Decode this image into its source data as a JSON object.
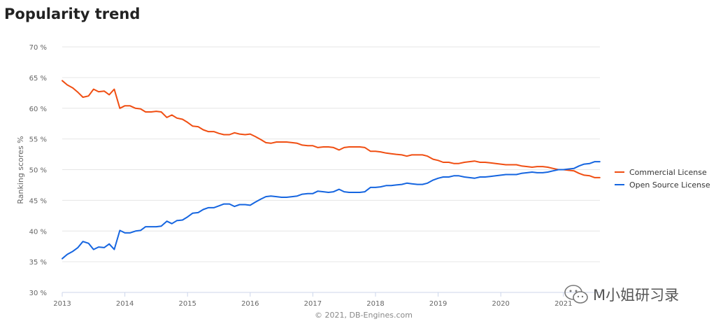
{
  "page": {
    "title": "Popularity trend"
  },
  "chart_data": {
    "type": "line",
    "ylabel": "Ranking scores %",
    "ylim": [
      30,
      70
    ],
    "yticks": [
      "30 %",
      "35 %",
      "40 %",
      "45 %",
      "50 %",
      "55 %",
      "60 %",
      "65 %",
      "70 %"
    ],
    "xlim": [
      2013.0,
      2021.61
    ],
    "xticks": [
      "2013",
      "2014",
      "2015",
      "2016",
      "2017",
      "2018",
      "2019",
      "2020",
      "2021"
    ],
    "grid": true,
    "legend_position": "right",
    "series": [
      {
        "name": "Commercial License",
        "color": "#f04e12",
        "x": [
          2013.0,
          2013.08,
          2013.17,
          2013.25,
          2013.33,
          2013.42,
          2013.5,
          2013.58,
          2013.67,
          2013.75,
          2013.83,
          2013.92,
          2014.0,
          2014.08,
          2014.17,
          2014.25,
          2014.33,
          2014.42,
          2014.5,
          2014.58,
          2014.67,
          2014.75,
          2014.83,
          2014.92,
          2015.0,
          2015.08,
          2015.17,
          2015.25,
          2015.33,
          2015.42,
          2015.5,
          2015.58,
          2015.67,
          2015.75,
          2015.83,
          2015.92,
          2016.0,
          2016.08,
          2016.17,
          2016.25,
          2016.33,
          2016.42,
          2016.5,
          2016.58,
          2016.67,
          2016.75,
          2016.83,
          2016.92,
          2017.0,
          2017.08,
          2017.17,
          2017.25,
          2017.33,
          2017.42,
          2017.5,
          2017.58,
          2017.67,
          2017.75,
          2017.83,
          2017.92,
          2018.0,
          2018.08,
          2018.17,
          2018.25,
          2018.33,
          2018.42,
          2018.5,
          2018.58,
          2018.67,
          2018.75,
          2018.83,
          2018.92,
          2019.0,
          2019.08,
          2019.17,
          2019.25,
          2019.33,
          2019.42,
          2019.5,
          2019.58,
          2019.67,
          2019.75,
          2019.83,
          2019.92,
          2020.0,
          2020.08,
          2020.17,
          2020.25,
          2020.33,
          2020.42,
          2020.5,
          2020.58,
          2020.67,
          2020.75,
          2020.83,
          2020.92,
          2021.0,
          2021.08,
          2021.17,
          2021.25,
          2021.33,
          2021.42,
          2021.5,
          2021.58
        ],
        "y": [
          64.5,
          63.8,
          63.3,
          62.6,
          61.8,
          62.0,
          63.1,
          62.7,
          62.8,
          62.2,
          63.1,
          60.0,
          60.4,
          60.4,
          60.0,
          59.9,
          59.4,
          59.4,
          59.5,
          59.4,
          58.5,
          58.9,
          58.4,
          58.2,
          57.7,
          57.1,
          57.0,
          56.5,
          56.2,
          56.2,
          55.9,
          55.7,
          55.7,
          56.0,
          55.8,
          55.7,
          55.8,
          55.4,
          54.9,
          54.4,
          54.3,
          54.5,
          54.5,
          54.5,
          54.4,
          54.3,
          54.0,
          53.9,
          53.9,
          53.6,
          53.7,
          53.7,
          53.6,
          53.2,
          53.6,
          53.7,
          53.7,
          53.7,
          53.6,
          53.0,
          53.0,
          52.9,
          52.7,
          52.6,
          52.5,
          52.4,
          52.2,
          52.4,
          52.4,
          52.4,
          52.2,
          51.7,
          51.5,
          51.2,
          51.2,
          51.0,
          51.0,
          51.2,
          51.3,
          51.4,
          51.2,
          51.2,
          51.1,
          51.0,
          50.9,
          50.8,
          50.8,
          50.8,
          50.6,
          50.5,
          50.4,
          50.5,
          50.5,
          50.4,
          50.2,
          50.0,
          50.0,
          49.9,
          49.8,
          49.4,
          49.1,
          49.0,
          48.7,
          48.7
        ]
      },
      {
        "name": "Open Source License",
        "color": "#1565e0",
        "x": [
          2013.0,
          2013.08,
          2013.17,
          2013.25,
          2013.33,
          2013.42,
          2013.5,
          2013.58,
          2013.67,
          2013.75,
          2013.83,
          2013.92,
          2014.0,
          2014.08,
          2014.17,
          2014.25,
          2014.33,
          2014.42,
          2014.5,
          2014.58,
          2014.67,
          2014.75,
          2014.83,
          2014.92,
          2015.0,
          2015.08,
          2015.17,
          2015.25,
          2015.33,
          2015.42,
          2015.5,
          2015.58,
          2015.67,
          2015.75,
          2015.83,
          2015.92,
          2016.0,
          2016.08,
          2016.17,
          2016.25,
          2016.33,
          2016.42,
          2016.5,
          2016.58,
          2016.67,
          2016.75,
          2016.83,
          2016.92,
          2017.0,
          2017.08,
          2017.17,
          2017.25,
          2017.33,
          2017.42,
          2017.5,
          2017.58,
          2017.67,
          2017.75,
          2017.83,
          2017.92,
          2018.0,
          2018.08,
          2018.17,
          2018.25,
          2018.33,
          2018.42,
          2018.5,
          2018.58,
          2018.67,
          2018.75,
          2018.83,
          2018.92,
          2019.0,
          2019.08,
          2019.17,
          2019.25,
          2019.33,
          2019.42,
          2019.5,
          2019.58,
          2019.67,
          2019.75,
          2019.83,
          2019.92,
          2020.0,
          2020.08,
          2020.17,
          2020.25,
          2020.33,
          2020.42,
          2020.5,
          2020.58,
          2020.67,
          2020.75,
          2020.83,
          2020.92,
          2021.0,
          2021.08,
          2021.17,
          2021.25,
          2021.33,
          2021.42,
          2021.5,
          2021.58
        ],
        "y": [
          35.5,
          36.2,
          36.7,
          37.3,
          38.3,
          38.0,
          37.0,
          37.4,
          37.3,
          37.9,
          37.0,
          40.1,
          39.7,
          39.7,
          40.0,
          40.1,
          40.7,
          40.7,
          40.7,
          40.8,
          41.6,
          41.2,
          41.7,
          41.8,
          42.3,
          42.9,
          43.0,
          43.5,
          43.8,
          43.8,
          44.1,
          44.4,
          44.4,
          44.0,
          44.3,
          44.3,
          44.2,
          44.7,
          45.2,
          45.6,
          45.7,
          45.6,
          45.5,
          45.5,
          45.6,
          45.7,
          46.0,
          46.1,
          46.1,
          46.5,
          46.4,
          46.3,
          46.4,
          46.8,
          46.4,
          46.3,
          46.3,
          46.3,
          46.4,
          47.1,
          47.1,
          47.2,
          47.4,
          47.4,
          47.5,
          47.6,
          47.8,
          47.7,
          47.6,
          47.6,
          47.8,
          48.3,
          48.6,
          48.8,
          48.8,
          49.0,
          49.0,
          48.8,
          48.7,
          48.6,
          48.8,
          48.8,
          48.9,
          49.0,
          49.1,
          49.2,
          49.2,
          49.2,
          49.4,
          49.5,
          49.6,
          49.5,
          49.5,
          49.6,
          49.8,
          50.0,
          50.0,
          50.1,
          50.2,
          50.6,
          50.9,
          51.0,
          51.3,
          51.3
        ]
      }
    ]
  },
  "footer": {
    "copyright": "© 2021, DB-Engines.com"
  },
  "watermark": {
    "text": "M小姐研习录",
    "icon": "wechat-icon"
  }
}
